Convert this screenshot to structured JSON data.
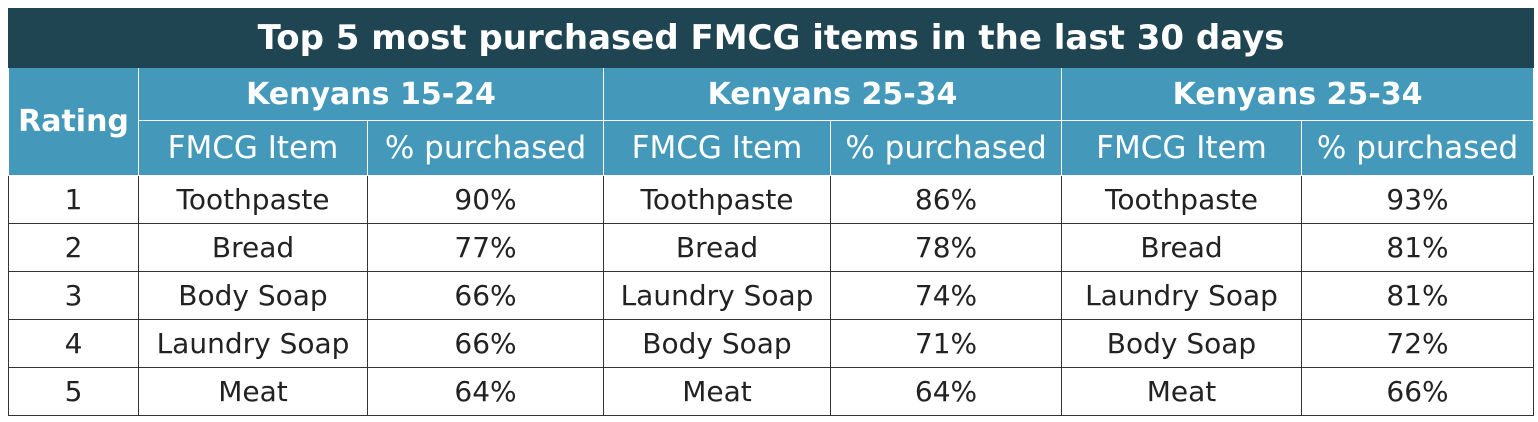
{
  "chart_data": {
    "type": "table",
    "title": "Top 5 most purchased FMCG items in the last 30 days",
    "rating_header": "Rating",
    "groups": [
      {
        "name": "Kenyans 15-24",
        "item_header": "FMCG Item",
        "value_header": "% purchased",
        "rows": [
          {
            "item": "Toothpaste",
            "value": "90%"
          },
          {
            "item": "Bread",
            "value": "77%"
          },
          {
            "item": "Body Soap",
            "value": "66%"
          },
          {
            "item": "Laundry Soap",
            "value": "66%"
          },
          {
            "item": "Meat",
            "value": "64%"
          }
        ]
      },
      {
        "name": "Kenyans 25-34",
        "item_header": "FMCG Item",
        "value_header": "% purchased",
        "rows": [
          {
            "item": "Toothpaste",
            "value": "86%"
          },
          {
            "item": "Bread",
            "value": "78%"
          },
          {
            "item": "Laundry Soap",
            "value": "74%"
          },
          {
            "item": "Body Soap",
            "value": "71%"
          },
          {
            "item": "Meat",
            "value": "64%"
          }
        ]
      },
      {
        "name": "Kenyans 25-34",
        "item_header": "FMCG Item",
        "value_header": "% purchased",
        "rows": [
          {
            "item": "Toothpaste",
            "value": "93%"
          },
          {
            "item": "Bread",
            "value": "81%"
          },
          {
            "item": "Laundry Soap",
            "value": "81%"
          },
          {
            "item": "Body Soap",
            "value": "72%"
          },
          {
            "item": "Meat",
            "value": "66%"
          }
        ]
      }
    ],
    "ratings": [
      "1",
      "2",
      "3",
      "4",
      "5"
    ],
    "colors": {
      "title_bg": "#204552",
      "header_bg": "#4499bb",
      "header_text": "#ffffff",
      "border": "#333333"
    }
  }
}
